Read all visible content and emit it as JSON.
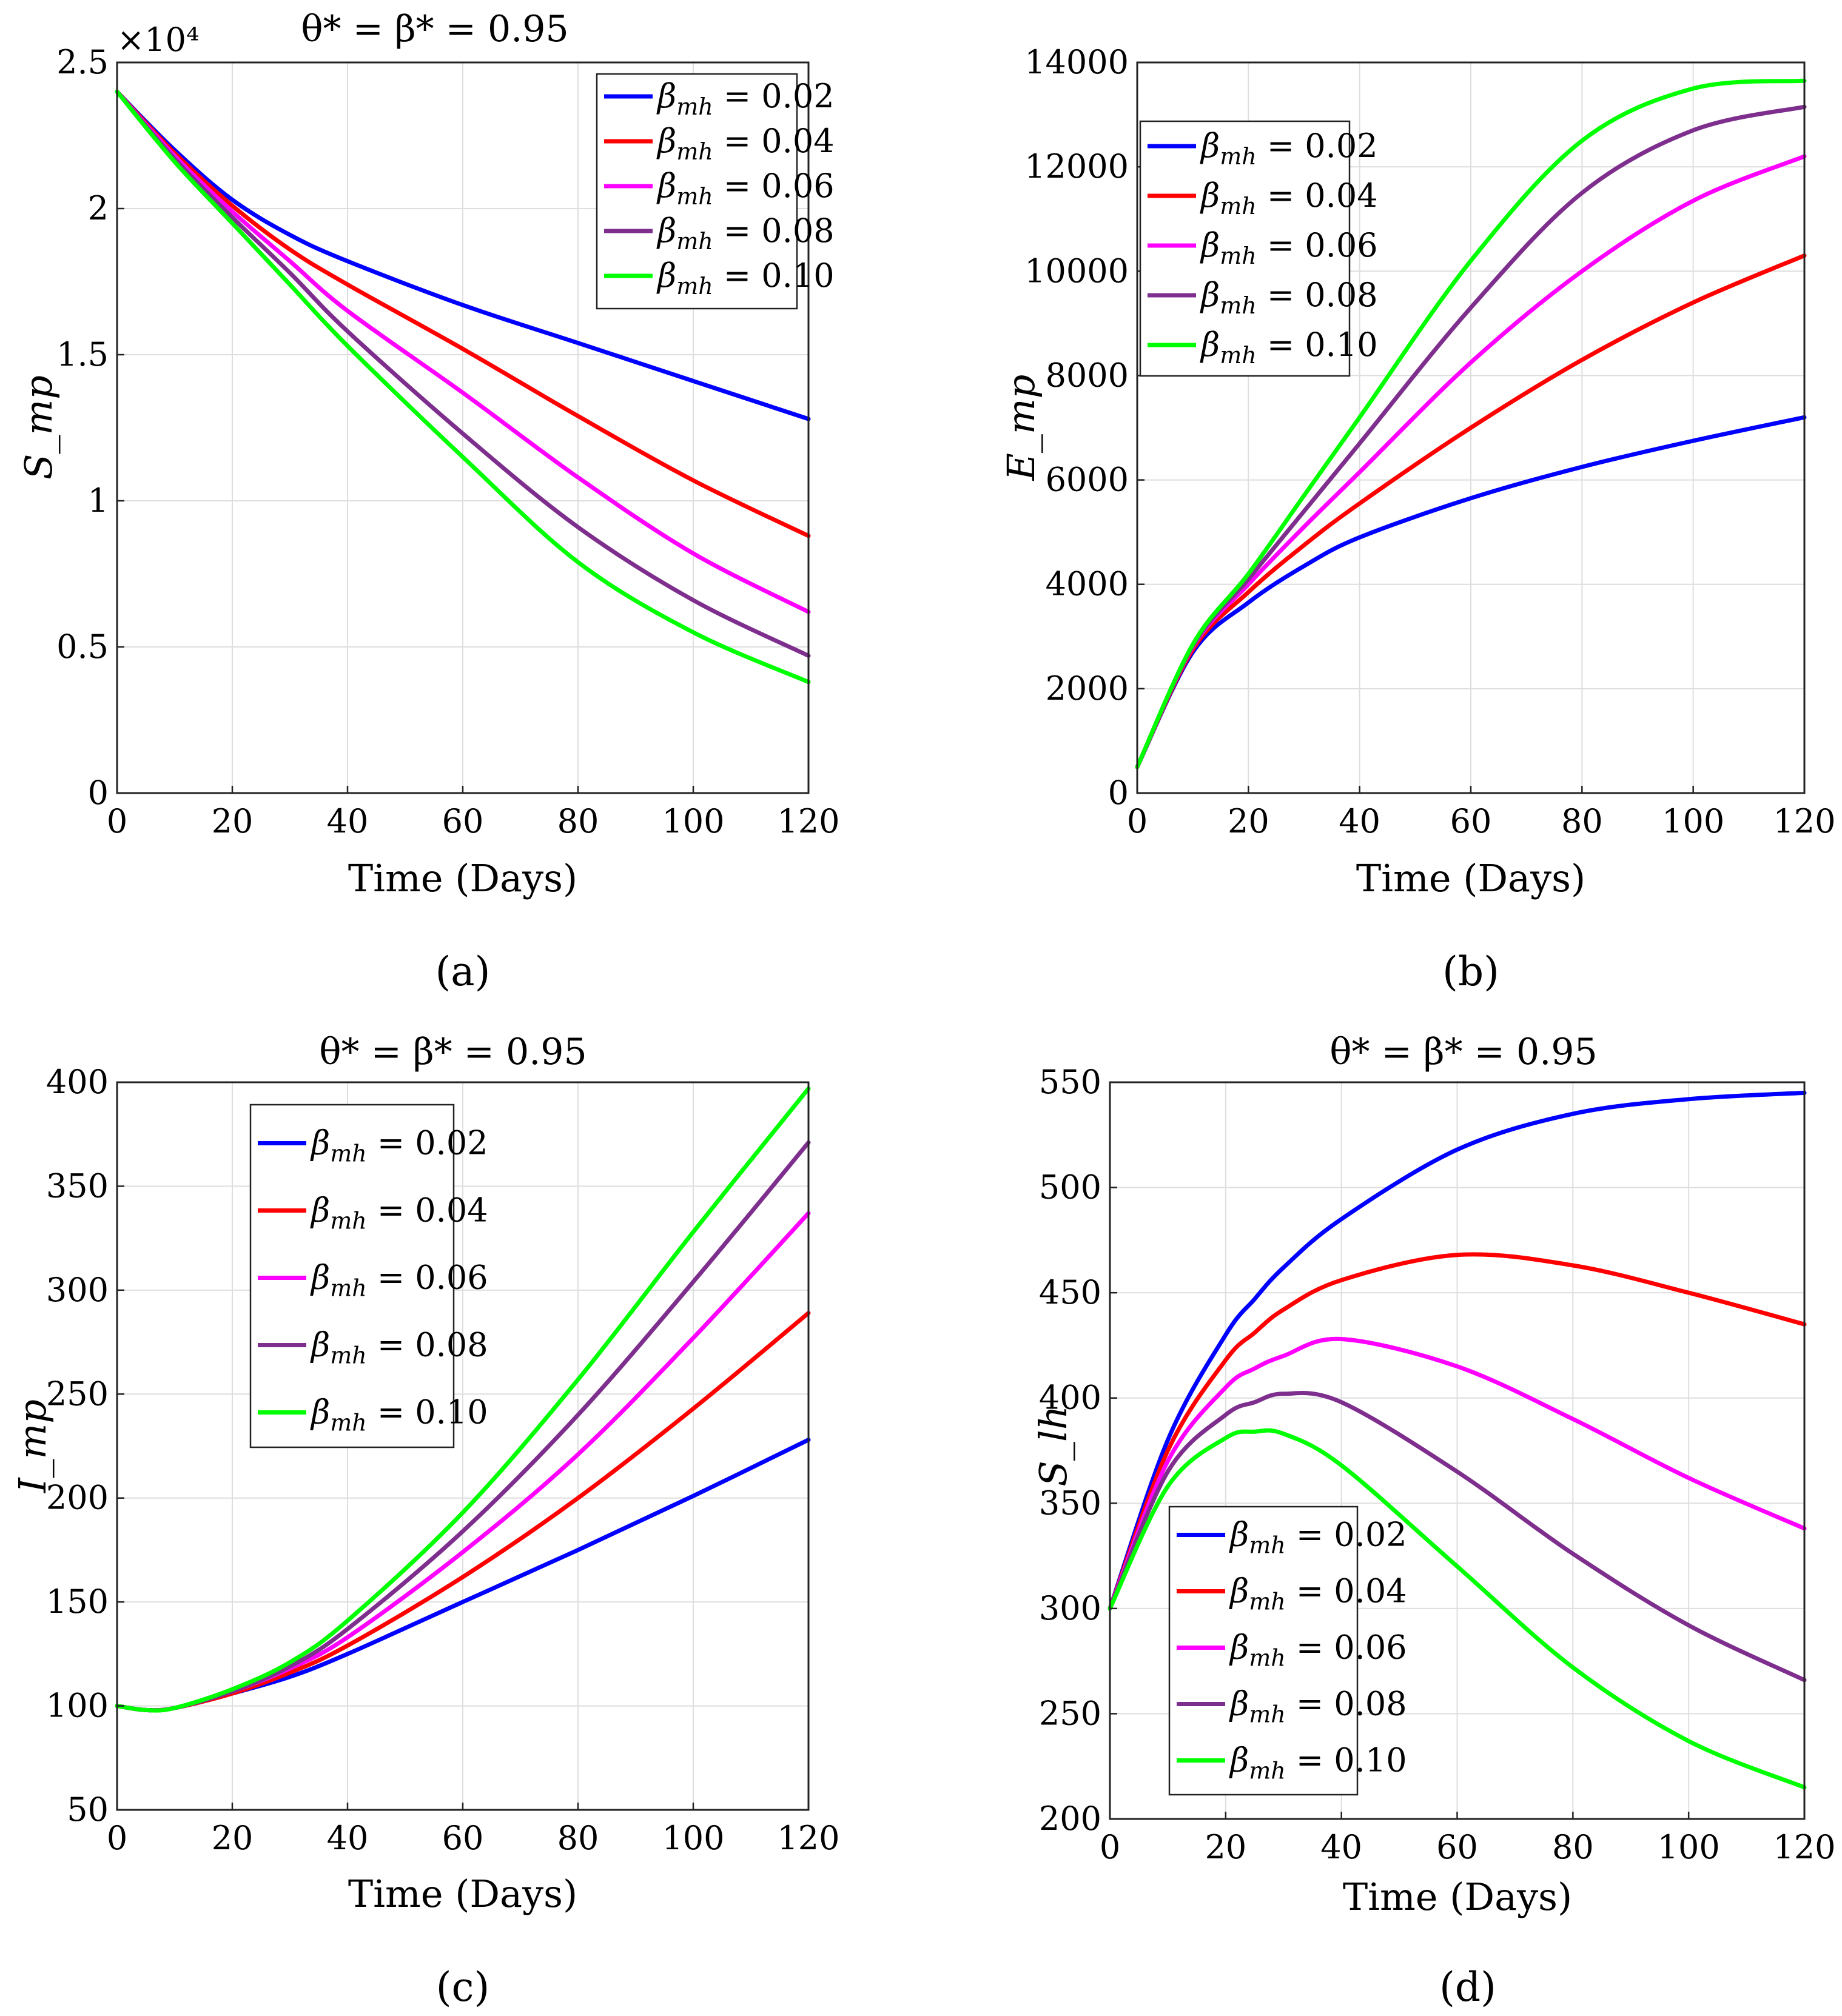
{
  "colors": {
    "s1": "#0000ff",
    "s2": "#ff0000",
    "s3": "#ff00ff",
    "s4": "#7e2f8e",
    "s5": "#00ff00"
  },
  "legend_labels": [
    "β_mh = 0.02",
    "β_mh = 0.04",
    "β_mh = 0.06",
    "β_mh = 0.08",
    "β_mh = 0.10"
  ],
  "chart_data": [
    {
      "id": "a",
      "type": "line",
      "title": "θ* = β* = 0.95",
      "xlabel": "Time (Days)",
      "ylabel": "S_mp",
      "exponent": "×10⁴",
      "xlim": [
        0,
        120
      ],
      "ylim": [
        0,
        2.5
      ],
      "xticks": [
        "0",
        "20",
        "40",
        "60",
        "80",
        "100",
        "120"
      ],
      "yticks": [
        "0",
        "0.5",
        "1",
        "1.5",
        "2",
        "2.5"
      ],
      "ytick_values": [
        0,
        0.5,
        1,
        1.5,
        2,
        2.5
      ],
      "legend": "top-right",
      "caption": "(a)",
      "x": [
        0,
        10,
        20,
        30,
        40,
        60,
        80,
        100,
        120
      ],
      "series": [
        {
          "name": "β_mh = 0.02",
          "color": "s1",
          "values": [
            2.4,
            2.2,
            2.03,
            1.91,
            1.82,
            1.67,
            1.54,
            1.41,
            1.28
          ]
        },
        {
          "name": "β_mh = 0.04",
          "color": "s2",
          "values": [
            2.4,
            2.19,
            2.01,
            1.86,
            1.74,
            1.52,
            1.29,
            1.07,
            0.88
          ]
        },
        {
          "name": "β_mh = 0.06",
          "color": "s3",
          "values": [
            2.4,
            2.18,
            1.99,
            1.82,
            1.65,
            1.37,
            1.08,
            0.82,
            0.62
          ]
        },
        {
          "name": "β_mh = 0.08",
          "color": "s4",
          "values": [
            2.4,
            2.17,
            1.97,
            1.78,
            1.58,
            1.23,
            0.91,
            0.66,
            0.47
          ]
        },
        {
          "name": "β_mh = 0.10",
          "color": "s5",
          "values": [
            2.4,
            2.16,
            1.95,
            1.74,
            1.53,
            1.15,
            0.79,
            0.55,
            0.38
          ]
        }
      ]
    },
    {
      "id": "b",
      "type": "line",
      "title": "",
      "xlabel": "Time (Days)",
      "ylabel": "E_mp",
      "exponent": "",
      "xlim": [
        0,
        120
      ],
      "ylim": [
        0,
        14000
      ],
      "xticks": [
        "0",
        "20",
        "40",
        "60",
        "80",
        "100",
        "120"
      ],
      "yticks": [
        "0",
        "2000",
        "4000",
        "6000",
        "8000",
        "10000",
        "12000",
        "14000"
      ],
      "ytick_values": [
        0,
        2000,
        4000,
        6000,
        8000,
        10000,
        12000,
        14000
      ],
      "legend": "top-left",
      "caption": "(b)",
      "x": [
        0,
        10,
        20,
        30,
        40,
        60,
        80,
        100,
        120
      ],
      "series": [
        {
          "name": "β_mh = 0.02",
          "color": "s1",
          "values": [
            500,
            2700,
            3650,
            4350,
            4900,
            5650,
            6250,
            6750,
            7200
          ]
        },
        {
          "name": "β_mh = 0.04",
          "color": "s2",
          "values": [
            500,
            2750,
            3850,
            4750,
            5550,
            7000,
            8300,
            9400,
            10300
          ]
        },
        {
          "name": "β_mh = 0.06",
          "color": "s3",
          "values": [
            500,
            2800,
            4000,
            5100,
            6150,
            8250,
            10000,
            11350,
            12200
          ]
        },
        {
          "name": "β_mh = 0.08",
          "color": "s4",
          "values": [
            500,
            2820,
            4100,
            5400,
            6700,
            9300,
            11500,
            12700,
            13150
          ]
        },
        {
          "name": "β_mh = 0.10",
          "color": "s5",
          "values": [
            500,
            2850,
            4200,
            5700,
            7200,
            10200,
            12500,
            13500,
            13650
          ]
        }
      ]
    },
    {
      "id": "c",
      "type": "line",
      "title": "θ* = β* = 0.95",
      "xlabel": "Time (Days)",
      "ylabel": "I_mp",
      "exponent": "",
      "xlim": [
        0,
        120
      ],
      "ylim": [
        50,
        400
      ],
      "xticks": [
        "0",
        "20",
        "40",
        "60",
        "80",
        "100",
        "120"
      ],
      "yticks": [
        "50",
        "100",
        "150",
        "200",
        "250",
        "300",
        "350",
        "400"
      ],
      "ytick_values": [
        50,
        100,
        150,
        200,
        250,
        300,
        350,
        400
      ],
      "legend": "top-left",
      "caption": "(c)",
      "x": [
        0,
        5,
        10,
        20,
        30,
        40,
        60,
        80,
        100,
        120
      ],
      "series": [
        {
          "name": "β_mh = 0.02",
          "color": "s1",
          "values": [
            100,
            98,
            99,
            106,
            114,
            125,
            150,
            175,
            201,
            228
          ]
        },
        {
          "name": "β_mh = 0.04",
          "color": "s2",
          "values": [
            100,
            98,
            99,
            106,
            116,
            129,
            162,
            200,
            243,
            289
          ]
        },
        {
          "name": "β_mh = 0.06",
          "color": "s3",
          "values": [
            100,
            98,
            99,
            107,
            118,
            133,
            174,
            221,
            277,
            337
          ]
        },
        {
          "name": "β_mh = 0.08",
          "color": "s4",
          "values": [
            100,
            98,
            99,
            107,
            119,
            137,
            184,
            240,
            304,
            371
          ]
        },
        {
          "name": "β_mh = 0.10",
          "color": "s5",
          "values": [
            100,
            98,
            99,
            108,
            121,
            141,
            193,
            257,
            328,
            397
          ]
        }
      ]
    },
    {
      "id": "d",
      "type": "line",
      "title": "θ* = β* = 0.95",
      "xlabel": "Time (Days)",
      "ylabel": "S_lh",
      "exponent": "",
      "xlim": [
        0,
        120
      ],
      "ylim": [
        200,
        550
      ],
      "xticks": [
        "0",
        "20",
        "40",
        "60",
        "80",
        "100",
        "120"
      ],
      "yticks": [
        "200",
        "250",
        "300",
        "350",
        "400",
        "450",
        "500",
        "550"
      ],
      "ytick_values": [
        200,
        250,
        300,
        350,
        400,
        450,
        500,
        550
      ],
      "legend": "bottom-left",
      "caption": "(d)",
      "x": [
        0,
        10,
        20,
        25,
        30,
        40,
        60,
        80,
        100,
        120
      ],
      "series": [
        {
          "name": "β_mh = 0.02",
          "color": "s1",
          "values": [
            300,
            380,
            430,
            447,
            462,
            485,
            518,
            535,
            542,
            545
          ]
        },
        {
          "name": "β_mh = 0.04",
          "color": "s2",
          "values": [
            300,
            375,
            418,
            431,
            442,
            456,
            468,
            463,
            450,
            435
          ]
        },
        {
          "name": "β_mh = 0.06",
          "color": "s3",
          "values": [
            300,
            370,
            405,
            414,
            420,
            428,
            415,
            390,
            362,
            338
          ]
        },
        {
          "name": "β_mh = 0.08",
          "color": "s4",
          "values": [
            300,
            365,
            392,
            398,
            402,
            398,
            365,
            326,
            292,
            266
          ]
        },
        {
          "name": "β_mh = 0.10",
          "color": "s5",
          "values": [
            300,
            358,
            381,
            384,
            383,
            368,
            320,
            272,
            237,
            215
          ]
        }
      ]
    }
  ]
}
